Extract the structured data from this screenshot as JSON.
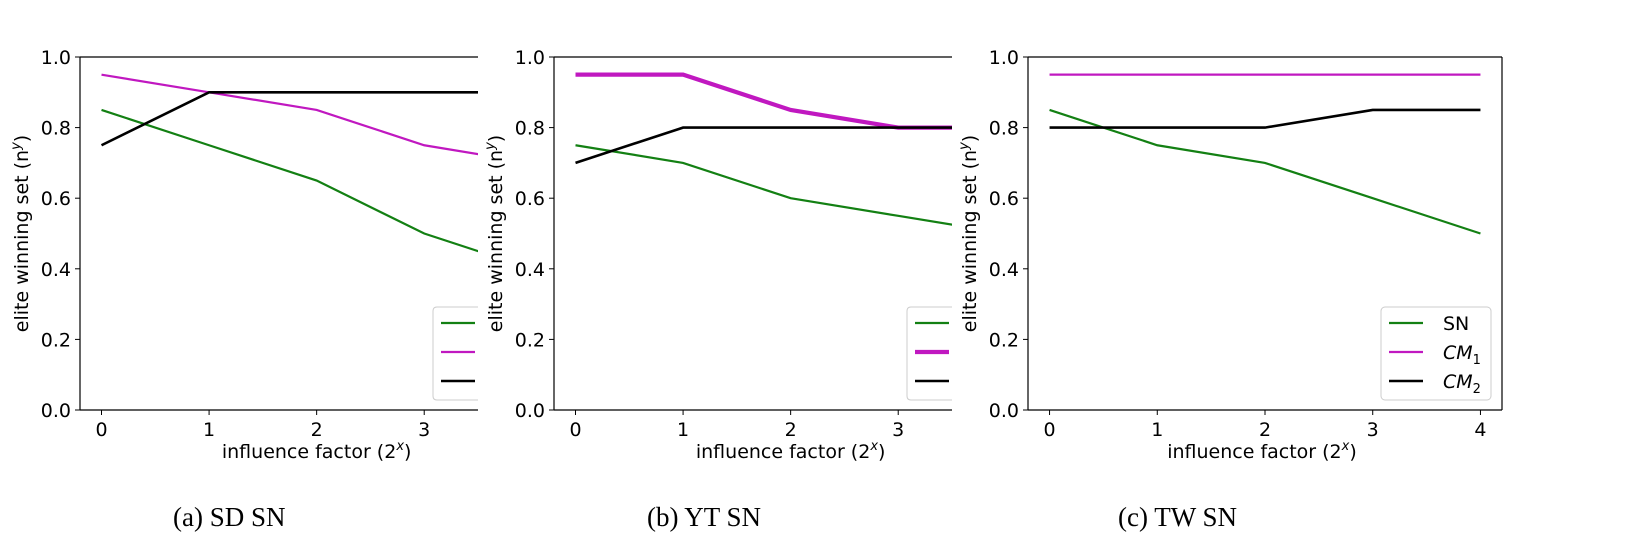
{
  "chart_data": [
    {
      "type": "line",
      "caption": "(a) SD SN",
      "xlabel": "influence factor (2",
      "xlabel_sup": "x",
      "ylabel": "elite winning set (n",
      "ylabel_sup": "y",
      "xticks": [
        "0",
        "1",
        "2",
        "3"
      ],
      "yticks": [
        "0.0",
        "0.2",
        "0.4",
        "0.6",
        "0.8",
        "1.0"
      ],
      "xlim": [
        -0.2,
        3.5
      ],
      "ylim": [
        0.0,
        1.0
      ],
      "x": [
        0,
        1,
        2,
        3,
        4
      ],
      "series": [
        {
          "key": "SN",
          "color": "#138013",
          "width": 2.2,
          "values": [
            0.85,
            0.75,
            0.65,
            0.5,
            0.4
          ]
        },
        {
          "key": "CM1",
          "color": "#c018c0",
          "width": 2.2,
          "values": [
            0.95,
            0.9,
            0.85,
            0.75,
            0.7
          ]
        },
        {
          "key": "CM2",
          "color": "#000000",
          "width": 2.6,
          "values": [
            0.75,
            0.9,
            0.9,
            0.9,
            0.9
          ]
        }
      ],
      "legend": {
        "placement": "bottom-right",
        "labels": [
          "",
          "",
          ""
        ],
        "cropped": true
      }
    },
    {
      "type": "line",
      "caption": "(b) YT SN",
      "xlabel": "influence factor (2",
      "xlabel_sup": "x",
      "ylabel": "elite winning set (n",
      "ylabel_sup": "y",
      "xticks": [
        "0",
        "1",
        "2",
        "3"
      ],
      "yticks": [
        "0.0",
        "0.2",
        "0.4",
        "0.6",
        "0.8",
        "1.0"
      ],
      "xlim": [
        -0.2,
        3.5
      ],
      "ylim": [
        0.0,
        1.0
      ],
      "x": [
        0,
        1,
        2,
        3,
        4
      ],
      "series": [
        {
          "key": "SN",
          "color": "#138013",
          "width": 2.2,
          "values": [
            0.75,
            0.7,
            0.6,
            0.55,
            0.5
          ]
        },
        {
          "key": "CM1",
          "color": "#c018c0",
          "width": 4.2,
          "values": [
            0.95,
            0.95,
            0.85,
            0.8,
            0.8
          ]
        },
        {
          "key": "CM2",
          "color": "#000000",
          "width": 2.6,
          "values": [
            0.7,
            0.8,
            0.8,
            0.8,
            0.8
          ]
        }
      ],
      "legend": {
        "placement": "bottom-right",
        "labels": [
          "",
          "",
          ""
        ],
        "cropped": true
      }
    },
    {
      "type": "line",
      "caption": "(c) TW SN",
      "xlabel": "influence factor (2",
      "xlabel_sup": "x",
      "ylabel": "elite winning set (n",
      "ylabel_sup": "y",
      "xticks": [
        "0",
        "1",
        "2",
        "3",
        "4"
      ],
      "yticks": [
        "0.0",
        "0.2",
        "0.4",
        "0.6",
        "0.8",
        "1.0"
      ],
      "xlim": [
        -0.2,
        4.2
      ],
      "ylim": [
        0.0,
        1.0
      ],
      "x": [
        0,
        1,
        2,
        3,
        4
      ],
      "series": [
        {
          "key": "SN",
          "color": "#138013",
          "width": 2.2,
          "values": [
            0.85,
            0.75,
            0.7,
            0.6,
            0.5
          ]
        },
        {
          "key": "CM1",
          "color": "#c018c0",
          "width": 2.2,
          "values": [
            0.95,
            0.95,
            0.95,
            0.95,
            0.95
          ]
        },
        {
          "key": "CM2",
          "color": "#000000",
          "width": 2.6,
          "values": [
            0.8,
            0.8,
            0.8,
            0.85,
            0.85
          ]
        }
      ],
      "legend": {
        "placement": "bottom-right",
        "cropped": false,
        "labels": [
          "SN",
          "CM",
          "CM"
        ],
        "subscripts": [
          "",
          "1",
          "2"
        ]
      }
    }
  ]
}
